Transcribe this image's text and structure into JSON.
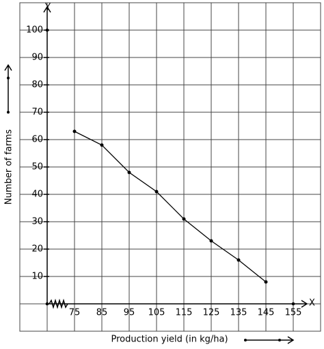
{
  "chart_data": {
    "type": "line",
    "x_label": "Production yield (in kg/ha)",
    "y_label": "Number of farms",
    "x_axis_name": "X",
    "y_axis_name": "Y",
    "x": [
      75,
      85,
      95,
      105,
      115,
      125,
      135,
      145
    ],
    "series": [
      {
        "color": "#000000",
        "values": [
          63,
          58,
          48,
          41,
          31,
          23,
          16,
          8
        ]
      }
    ],
    "xlim": [
      55,
      165
    ],
    "ylim": [
      -10,
      110
    ],
    "xticks": [
      75,
      85,
      95,
      105,
      115,
      125,
      135,
      145,
      155
    ],
    "yticks": [
      10,
      20,
      30,
      40,
      50,
      60,
      70,
      80,
      90,
      100
    ],
    "grid": true
  }
}
